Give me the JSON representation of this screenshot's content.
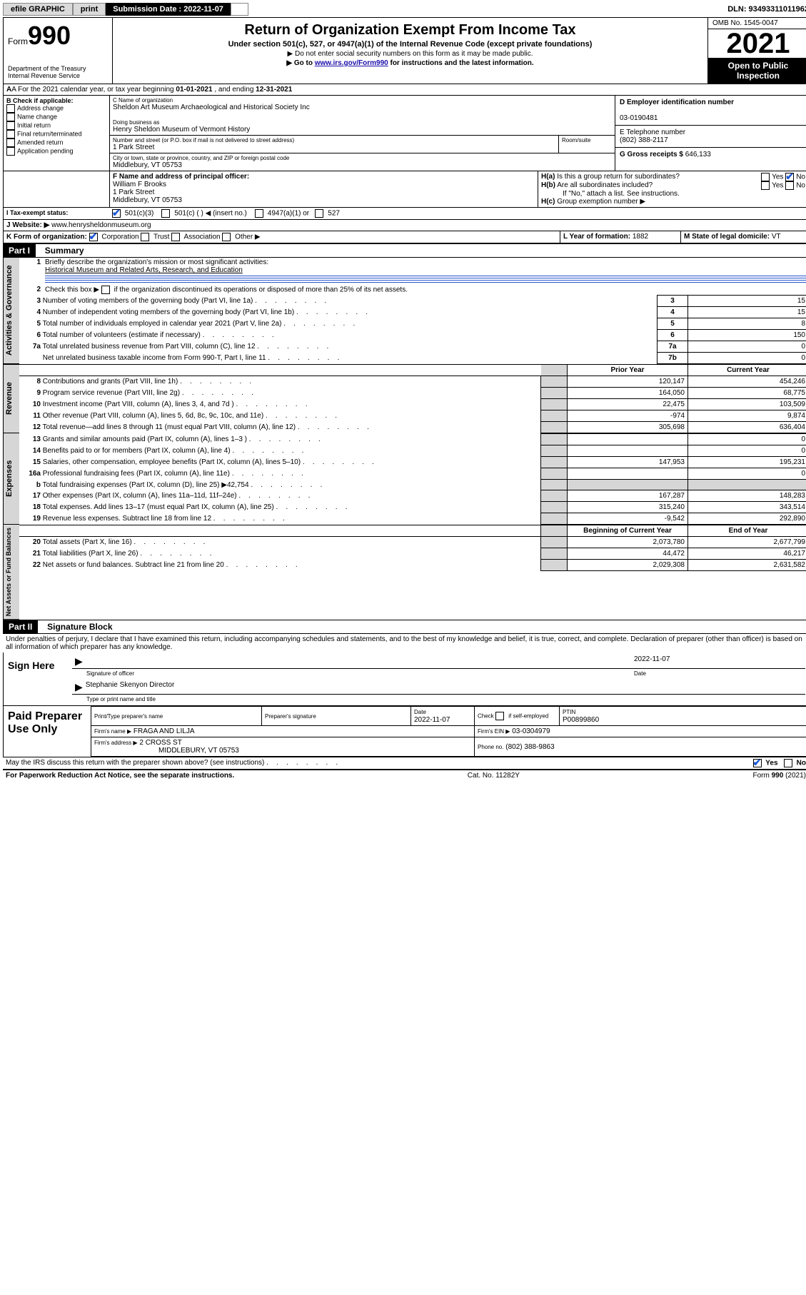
{
  "toolbar": {
    "efile_label": "efile GRAPHIC",
    "print_label": "print",
    "sub_date_label": "Submission Date : 2022-11-07",
    "dln_label": "DLN: 93493311011962"
  },
  "header": {
    "form_word": "Form",
    "form_num": "990",
    "title": "Return of Organization Exempt From Income Tax",
    "sub1": "Under section 501(c), 527, or 4947(a)(1) of the Internal Revenue Code (except private foundations)",
    "sub2": "▶ Do not enter social security numbers on this form as it may be made public.",
    "sub3_pre": "▶ Go to ",
    "sub3_link": "www.irs.gov/Form990",
    "sub3_post": " for instructions and the latest information.",
    "dept1": "Department of the Treasury",
    "dept2": "Internal Revenue Service",
    "omb": "OMB No. 1545-0047",
    "year": "2021",
    "open": "Open to Public Inspection"
  },
  "lineA": {
    "label_pre": "A For the 2021 calendar year, or tax year beginning ",
    "begin": "01-01-2021",
    "mid": "  , and ending ",
    "end": "12-31-2021"
  },
  "boxB": {
    "title": "B Check if applicable:",
    "items": [
      "Address change",
      "Name change",
      "Initial return",
      "Final return/terminated",
      "Amended return",
      "Application pending"
    ]
  },
  "boxC": {
    "label": "C Name of organization",
    "name": "Sheldon Art Museum Archaeological and Historical Society Inc",
    "dba_label": "Doing business as",
    "dba": "Henry Sheldon Museum of Vermont History",
    "addr_label": "Number and street (or P.O. box if mail is not delivered to street address)",
    "room_label": "Room/suite",
    "addr": "1 Park Street",
    "city_label": "City or town, state or province, country, and ZIP or foreign postal code",
    "city": "Middlebury, VT  05753"
  },
  "boxD": {
    "label": "D Employer identification number",
    "value": "03-0190481"
  },
  "boxE": {
    "label": "E Telephone number",
    "value": "(802) 388-2117"
  },
  "boxG": {
    "label": "G Gross receipts $",
    "value": "646,133"
  },
  "boxF": {
    "label": "F Name and address of principal officer:",
    "name": "William F Brooks",
    "addr1": "1 Park Street",
    "addr2": "Middlebury, VT  05753"
  },
  "boxH": {
    "a_label": "H(a)  Is this a group return for subordinates?",
    "b_label": "H(b)  Are all subordinates included?",
    "note": "If \"No,\" attach a list. See instructions.",
    "c_label": "H(c)  Group exemption number ▶",
    "yes": "Yes",
    "no": "No"
  },
  "boxI": {
    "label": "I   Tax-exempt status:",
    "c3": "501(c)(3)",
    "c": "501(c) (  ) ◀ (insert no.)",
    "a1": "4947(a)(1) or",
    "s527": "527"
  },
  "boxJ": {
    "label": "J   Website: ▶",
    "value": "www.henrysheldonmuseum.org"
  },
  "boxK": {
    "label": "K Form of organization:",
    "opts": [
      "Corporation",
      "Trust",
      "Association",
      "Other ▶"
    ]
  },
  "boxL": {
    "label": "L Year of formation:",
    "value": "1882"
  },
  "boxM": {
    "label": "M State of legal domicile:",
    "value": "VT"
  },
  "part1": {
    "header": "Part I",
    "title": "Summary",
    "l1_label": "Briefly describe the organization's mission or most significant activities:",
    "l1_value": "Historical Museum and Related Arts, Research, and Education",
    "l2_label": "Check this box ▶",
    "l2_post": " if the organization discontinued its operations or disposed of more than 25% of its net assets.",
    "rows_gov": [
      {
        "n": "3",
        "t": "Number of voting members of the governing body (Part VI, line 1a)",
        "box": "3",
        "v": "15"
      },
      {
        "n": "4",
        "t": "Number of independent voting members of the governing body (Part VI, line 1b)",
        "box": "4",
        "v": "15"
      },
      {
        "n": "5",
        "t": "Total number of individuals employed in calendar year 2021 (Part V, line 2a)",
        "box": "5",
        "v": "8"
      },
      {
        "n": "6",
        "t": "Total number of volunteers (estimate if necessary)",
        "box": "6",
        "v": "150"
      },
      {
        "n": "7a",
        "t": "Total unrelated business revenue from Part VIII, column (C), line 12",
        "box": "7a",
        "v": "0"
      },
      {
        "n": "",
        "t": "Net unrelated business taxable income from Form 990-T, Part I, line 11",
        "box": "7b",
        "v": "0"
      }
    ],
    "col_prior": "Prior Year",
    "col_curr": "Current Year",
    "rev": [
      {
        "n": "8",
        "t": "Contributions and grants (Part VIII, line 1h)",
        "p": "120,147",
        "c": "454,246"
      },
      {
        "n": "9",
        "t": "Program service revenue (Part VIII, line 2g)",
        "p": "164,050",
        "c": "68,775"
      },
      {
        "n": "10",
        "t": "Investment income (Part VIII, column (A), lines 3, 4, and 7d )",
        "p": "22,475",
        "c": "103,509"
      },
      {
        "n": "11",
        "t": "Other revenue (Part VIII, column (A), lines 5, 6d, 8c, 9c, 10c, and 11e)",
        "p": "-974",
        "c": "9,874"
      },
      {
        "n": "12",
        "t": "Total revenue—add lines 8 through 11 (must equal Part VIII, column (A), line 12)",
        "p": "305,698",
        "c": "636,404"
      }
    ],
    "exp": [
      {
        "n": "13",
        "t": "Grants and similar amounts paid (Part IX, column (A), lines 1–3 )",
        "p": "",
        "c": "0"
      },
      {
        "n": "14",
        "t": "Benefits paid to or for members (Part IX, column (A), line 4)",
        "p": "",
        "c": "0"
      },
      {
        "n": "15",
        "t": "Salaries, other compensation, employee benefits (Part IX, column (A), lines 5–10)",
        "p": "147,953",
        "c": "195,231"
      },
      {
        "n": "16a",
        "t": "Professional fundraising fees (Part IX, column (A), line 11e)",
        "p": "",
        "c": "0"
      },
      {
        "n": "b",
        "t": "Total fundraising expenses (Part IX, column (D), line 25) ▶42,754",
        "p": "SHADE",
        "c": "SHADE"
      },
      {
        "n": "17",
        "t": "Other expenses (Part IX, column (A), lines 11a–11d, 11f–24e)",
        "p": "167,287",
        "c": "148,283"
      },
      {
        "n": "18",
        "t": "Total expenses. Add lines 13–17 (must equal Part IX, column (A), line 25)",
        "p": "315,240",
        "c": "343,514"
      },
      {
        "n": "19",
        "t": "Revenue less expenses. Subtract line 18 from line 12",
        "p": "-9,542",
        "c": "292,890"
      }
    ],
    "col_begin": "Beginning of Current Year",
    "col_end": "End of Year",
    "net": [
      {
        "n": "20",
        "t": "Total assets (Part X, line 16)",
        "p": "2,073,780",
        "c": "2,677,799"
      },
      {
        "n": "21",
        "t": "Total liabilities (Part X, line 26)",
        "p": "44,472",
        "c": "46,217"
      },
      {
        "n": "22",
        "t": "Net assets or fund balances. Subtract line 21 from line 20",
        "p": "2,029,308",
        "c": "2,631,582"
      }
    ],
    "vtab_gov": "Activities & Governance",
    "vtab_rev": "Revenue",
    "vtab_exp": "Expenses",
    "vtab_net": "Net Assets or Fund Balances"
  },
  "part2": {
    "header": "Part II",
    "title": "Signature Block",
    "decl": "Under penalties of perjury, I declare that I have examined this return, including accompanying schedules and statements, and to the best of my knowledge and belief, it is true, correct, and complete. Declaration of preparer (other than officer) is based on all information of which preparer has any knowledge."
  },
  "sign": {
    "left": "Sign Here",
    "sig_label": "Signature of officer",
    "date_label": "Date",
    "date_val": "2022-11-07",
    "name": "Stephanie Skenyon Director",
    "name_label": "Type or print name and title"
  },
  "prep": {
    "left": "Paid Preparer Use Only",
    "col_name": "Print/Type preparer's name",
    "col_sig": "Preparer's signature",
    "col_date": "Date",
    "date_val": "2022-11-07",
    "self_label": "Check",
    "self_post": "if self-employed",
    "ptin_label": "PTIN",
    "ptin": "P00899860",
    "firm_name_label": "Firm's name    ▶",
    "firm_name": "FRAGA AND LILJA",
    "firm_ein_label": "Firm's EIN ▶",
    "firm_ein": "03-0304979",
    "firm_addr_label": "Firm's address ▶",
    "firm_addr1": "2 CROSS ST",
    "firm_addr2": "MIDDLEBURY, VT  05753",
    "phone_label": "Phone no.",
    "phone": "(802) 388-9863"
  },
  "discuss": {
    "q": "May the IRS discuss this return with the preparer shown above? (see instructions)",
    "yes": "Yes",
    "no": "No"
  },
  "footer": {
    "left": "For Paperwork Reduction Act Notice, see the separate instructions.",
    "mid": "Cat. No. 11282Y",
    "right": "Form 990 (2021)"
  },
  "style": {
    "accent": "#1a57d6",
    "shade": "#d6d6d6"
  }
}
